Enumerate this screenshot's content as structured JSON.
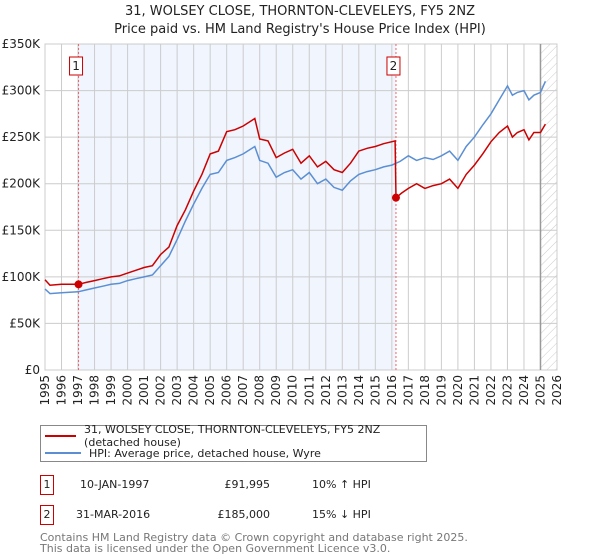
{
  "title": "31, WOLSEY CLOSE, THORNTON-CLEVELEYS, FY5 2NZ",
  "subtitle": "Price paid vs. HM Land Registry's House Price Index (HPI)",
  "chart_data": {
    "type": "line",
    "xlim": [
      1995,
      2026
    ],
    "ylim": [
      0,
      350000
    ],
    "x_ticks": [
      "1995",
      "1996",
      "1997",
      "1998",
      "1999",
      "2000",
      "2001",
      "2002",
      "2003",
      "2004",
      "2005",
      "2006",
      "2007",
      "2008",
      "2009",
      "2010",
      "2011",
      "2012",
      "2013",
      "2014",
      "2015",
      "2016",
      "2017",
      "2018",
      "2019",
      "2020",
      "2021",
      "2022",
      "2023",
      "2024",
      "2025",
      "2026"
    ],
    "y_ticks": [
      {
        "v": 0,
        "l": "£0"
      },
      {
        "v": 50000,
        "l": "£50K"
      },
      {
        "v": 100000,
        "l": "£100K"
      },
      {
        "v": 150000,
        "l": "£150K"
      },
      {
        "v": 200000,
        "l": "£200K"
      },
      {
        "v": 250000,
        "l": "£250K"
      },
      {
        "v": 300000,
        "l": "£300K"
      },
      {
        "v": 350000,
        "l": "£350K"
      }
    ],
    "series": [
      {
        "name": "31, WOLSEY CLOSE, THORNTON-CLEVELEYS, FY5 2NZ (detached house)",
        "color": "#cc0000",
        "x": [
          1995,
          1995.3,
          1996,
          1997.03,
          1997.5,
          1998,
          1998.5,
          1999,
          1999.5,
          2000,
          2000.5,
          2001,
          2001.5,
          2002,
          2002.5,
          2003,
          2003.5,
          2004,
          2004.5,
          2005,
          2005.5,
          2006,
          2006.5,
          2007,
          2007.7,
          2008,
          2008.5,
          2009,
          2009.5,
          2010,
          2010.5,
          2011,
          2011.5,
          2012,
          2012.5,
          2013,
          2013.5,
          2014,
          2014.5,
          2015,
          2015.5,
          2016.2,
          2016.25,
          2016.6,
          2017,
          2017.5,
          2018,
          2018.5,
          2019,
          2019.5,
          2020,
          2020.5,
          2021,
          2021.5,
          2022,
          2022.5,
          2023,
          2023.3,
          2023.6,
          2024,
          2024.3,
          2024.6,
          2025,
          2025.3
        ],
        "y": [
          97000,
          91000,
          92000,
          91995,
          94000,
          96000,
          98000,
          100000,
          101000,
          104000,
          107000,
          110000,
          112000,
          124000,
          132000,
          155000,
          172000,
          192000,
          210000,
          232000,
          235000,
          256000,
          258000,
          262000,
          270000,
          248000,
          246000,
          228000,
          233000,
          237000,
          222000,
          230000,
          218000,
          224000,
          215000,
          212000,
          222000,
          235000,
          238000,
          240000,
          243000,
          246000,
          185000,
          190000,
          195000,
          200000,
          195000,
          198000,
          200000,
          205000,
          195000,
          210000,
          220000,
          232000,
          245000,
          255000,
          262000,
          250000,
          255000,
          258000,
          247000,
          255000,
          255000,
          264000
        ]
      },
      {
        "name": "HPI: Average price, detached house, Wyre",
        "color": "#5b8fd4",
        "x": [
          1995,
          1995.3,
          1996,
          1997,
          1997.5,
          1998,
          1998.5,
          1999,
          1999.5,
          2000,
          2000.5,
          2001,
          2001.5,
          2002,
          2002.5,
          2003,
          2003.5,
          2004,
          2004.5,
          2005,
          2005.5,
          2006,
          2006.5,
          2007,
          2007.7,
          2008,
          2008.5,
          2009,
          2009.5,
          2010,
          2010.5,
          2011,
          2011.5,
          2012,
          2012.5,
          2013,
          2013.5,
          2014,
          2014.5,
          2015,
          2015.5,
          2016,
          2016.5,
          2017,
          2017.5,
          2018,
          2018.5,
          2019,
          2019.5,
          2020,
          2020.5,
          2021,
          2021.5,
          2022,
          2022.5,
          2023,
          2023.3,
          2023.6,
          2024,
          2024.3,
          2024.6,
          2025,
          2025.3
        ],
        "y": [
          87000,
          82000,
          83000,
          84000,
          86000,
          88000,
          90000,
          92000,
          93000,
          96000,
          98000,
          100000,
          102000,
          112000,
          122000,
          140000,
          160000,
          178000,
          195000,
          210000,
          212000,
          225000,
          228000,
          232000,
          240000,
          225000,
          222000,
          207000,
          212000,
          215000,
          205000,
          212000,
          200000,
          205000,
          196000,
          193000,
          203000,
          210000,
          213000,
          215000,
          218000,
          220000,
          224000,
          230000,
          225000,
          228000,
          226000,
          230000,
          235000,
          225000,
          240000,
          250000,
          263000,
          275000,
          290000,
          305000,
          295000,
          298000,
          300000,
          290000,
          295000,
          298000,
          310000
        ]
      }
    ],
    "markers": [
      {
        "label": "1",
        "x": 1997.03,
        "y": 91995
      },
      {
        "label": "2",
        "x": 2016.25,
        "y": 185000
      }
    ],
    "shaded_range": [
      1997.03,
      2016.25
    ],
    "hatched_from": 2025.0,
    "grid": true
  },
  "legend": {
    "items": [
      "31, WOLSEY CLOSE, THORNTON-CLEVELEYS, FY5 2NZ (detached house)",
      "HPI: Average price, detached house, Wyre"
    ]
  },
  "transactions": [
    {
      "num": "1",
      "date": "10-JAN-1997",
      "price": "£91,995",
      "hpi": "10% ↑ HPI"
    },
    {
      "num": "2",
      "date": "31-MAR-2016",
      "price": "£185,000",
      "hpi": "15% ↓ HPI"
    }
  ],
  "footer": [
    "Contains HM Land Registry data © Crown copyright and database right 2025.",
    "This data is licensed under the Open Government Licence v3.0."
  ]
}
